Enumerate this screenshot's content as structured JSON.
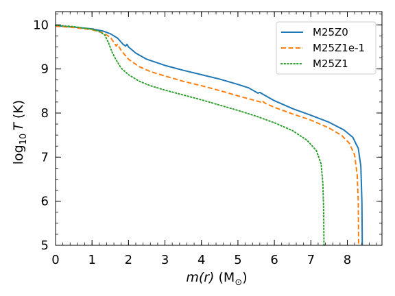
{
  "chart_data": {
    "type": "line",
    "xlabel": {
      "var": "m(r)",
      "unit_open": " (M",
      "unit_sub": "⊙",
      "unit_close": ")"
    },
    "ylabel": {
      "pre": "log",
      "sub": "10",
      "var": "T",
      "unit": " (K)"
    },
    "xlim": [
      0,
      8.95
    ],
    "ylim": [
      5,
      10.3
    ],
    "x_ticks": [
      0,
      1,
      2,
      3,
      4,
      5,
      6,
      7,
      8
    ],
    "y_ticks": [
      5,
      6,
      7,
      8,
      9,
      10
    ],
    "grid": false,
    "legend_position": "top-right",
    "series": [
      {
        "name": "M25Z0",
        "color": "#1f77b4",
        "dash": "solid",
        "points": [
          [
            0.0,
            9.98
          ],
          [
            0.5,
            9.95
          ],
          [
            1.0,
            9.91
          ],
          [
            1.3,
            9.86
          ],
          [
            1.5,
            9.8
          ],
          [
            1.7,
            9.7
          ],
          [
            1.85,
            9.56
          ],
          [
            1.92,
            9.52
          ],
          [
            1.96,
            9.56
          ],
          [
            2.0,
            9.5
          ],
          [
            2.2,
            9.36
          ],
          [
            2.5,
            9.22
          ],
          [
            3.0,
            9.08
          ],
          [
            3.5,
            8.97
          ],
          [
            4.0,
            8.87
          ],
          [
            4.5,
            8.77
          ],
          [
            5.0,
            8.65
          ],
          [
            5.3,
            8.57
          ],
          [
            5.55,
            8.45
          ],
          [
            5.6,
            8.47
          ],
          [
            5.7,
            8.42
          ],
          [
            6.0,
            8.28
          ],
          [
            6.5,
            8.1
          ],
          [
            7.0,
            7.95
          ],
          [
            7.5,
            7.79
          ],
          [
            7.9,
            7.62
          ],
          [
            8.15,
            7.45
          ],
          [
            8.3,
            7.2
          ],
          [
            8.37,
            6.8
          ],
          [
            8.4,
            6.0
          ],
          [
            8.41,
            5.0
          ]
        ]
      },
      {
        "name": "M25Z1e-1",
        "color": "#ff7f0e",
        "dash": "dashed",
        "points": [
          [
            0.0,
            9.97
          ],
          [
            0.5,
            9.94
          ],
          [
            1.0,
            9.89
          ],
          [
            1.3,
            9.82
          ],
          [
            1.5,
            9.72
          ],
          [
            1.62,
            9.58
          ],
          [
            1.66,
            9.52
          ],
          [
            1.7,
            9.56
          ],
          [
            1.8,
            9.42
          ],
          [
            2.0,
            9.22
          ],
          [
            2.3,
            9.05
          ],
          [
            2.6,
            8.94
          ],
          [
            3.0,
            8.84
          ],
          [
            3.5,
            8.72
          ],
          [
            4.0,
            8.62
          ],
          [
            4.5,
            8.51
          ],
          [
            5.0,
            8.39
          ],
          [
            5.4,
            8.3
          ],
          [
            5.62,
            8.25
          ],
          [
            5.66,
            8.28
          ],
          [
            5.75,
            8.22
          ],
          [
            6.0,
            8.13
          ],
          [
            6.5,
            7.98
          ],
          [
            7.0,
            7.84
          ],
          [
            7.5,
            7.66
          ],
          [
            7.85,
            7.49
          ],
          [
            8.05,
            7.32
          ],
          [
            8.2,
            7.05
          ],
          [
            8.27,
            6.6
          ],
          [
            8.3,
            6.0
          ],
          [
            8.31,
            5.0
          ]
        ]
      },
      {
        "name": "M25Z1",
        "color": "#2ca02c",
        "dash": "dotted",
        "points": [
          [
            0.0,
            9.99
          ],
          [
            0.5,
            9.96
          ],
          [
            1.0,
            9.9
          ],
          [
            1.2,
            9.85
          ],
          [
            1.35,
            9.77
          ],
          [
            1.45,
            9.6
          ],
          [
            1.55,
            9.38
          ],
          [
            1.65,
            9.22
          ],
          [
            1.8,
            9.02
          ],
          [
            2.0,
            8.87
          ],
          [
            2.3,
            8.72
          ],
          [
            2.6,
            8.62
          ],
          [
            3.0,
            8.52
          ],
          [
            3.5,
            8.41
          ],
          [
            4.0,
            8.3
          ],
          [
            4.5,
            8.18
          ],
          [
            5.0,
            8.06
          ],
          [
            5.5,
            7.93
          ],
          [
            6.0,
            7.78
          ],
          [
            6.5,
            7.6
          ],
          [
            6.9,
            7.38
          ],
          [
            7.15,
            7.15
          ],
          [
            7.28,
            6.85
          ],
          [
            7.33,
            6.4
          ],
          [
            7.35,
            5.8
          ],
          [
            7.36,
            5.0
          ]
        ]
      }
    ]
  }
}
